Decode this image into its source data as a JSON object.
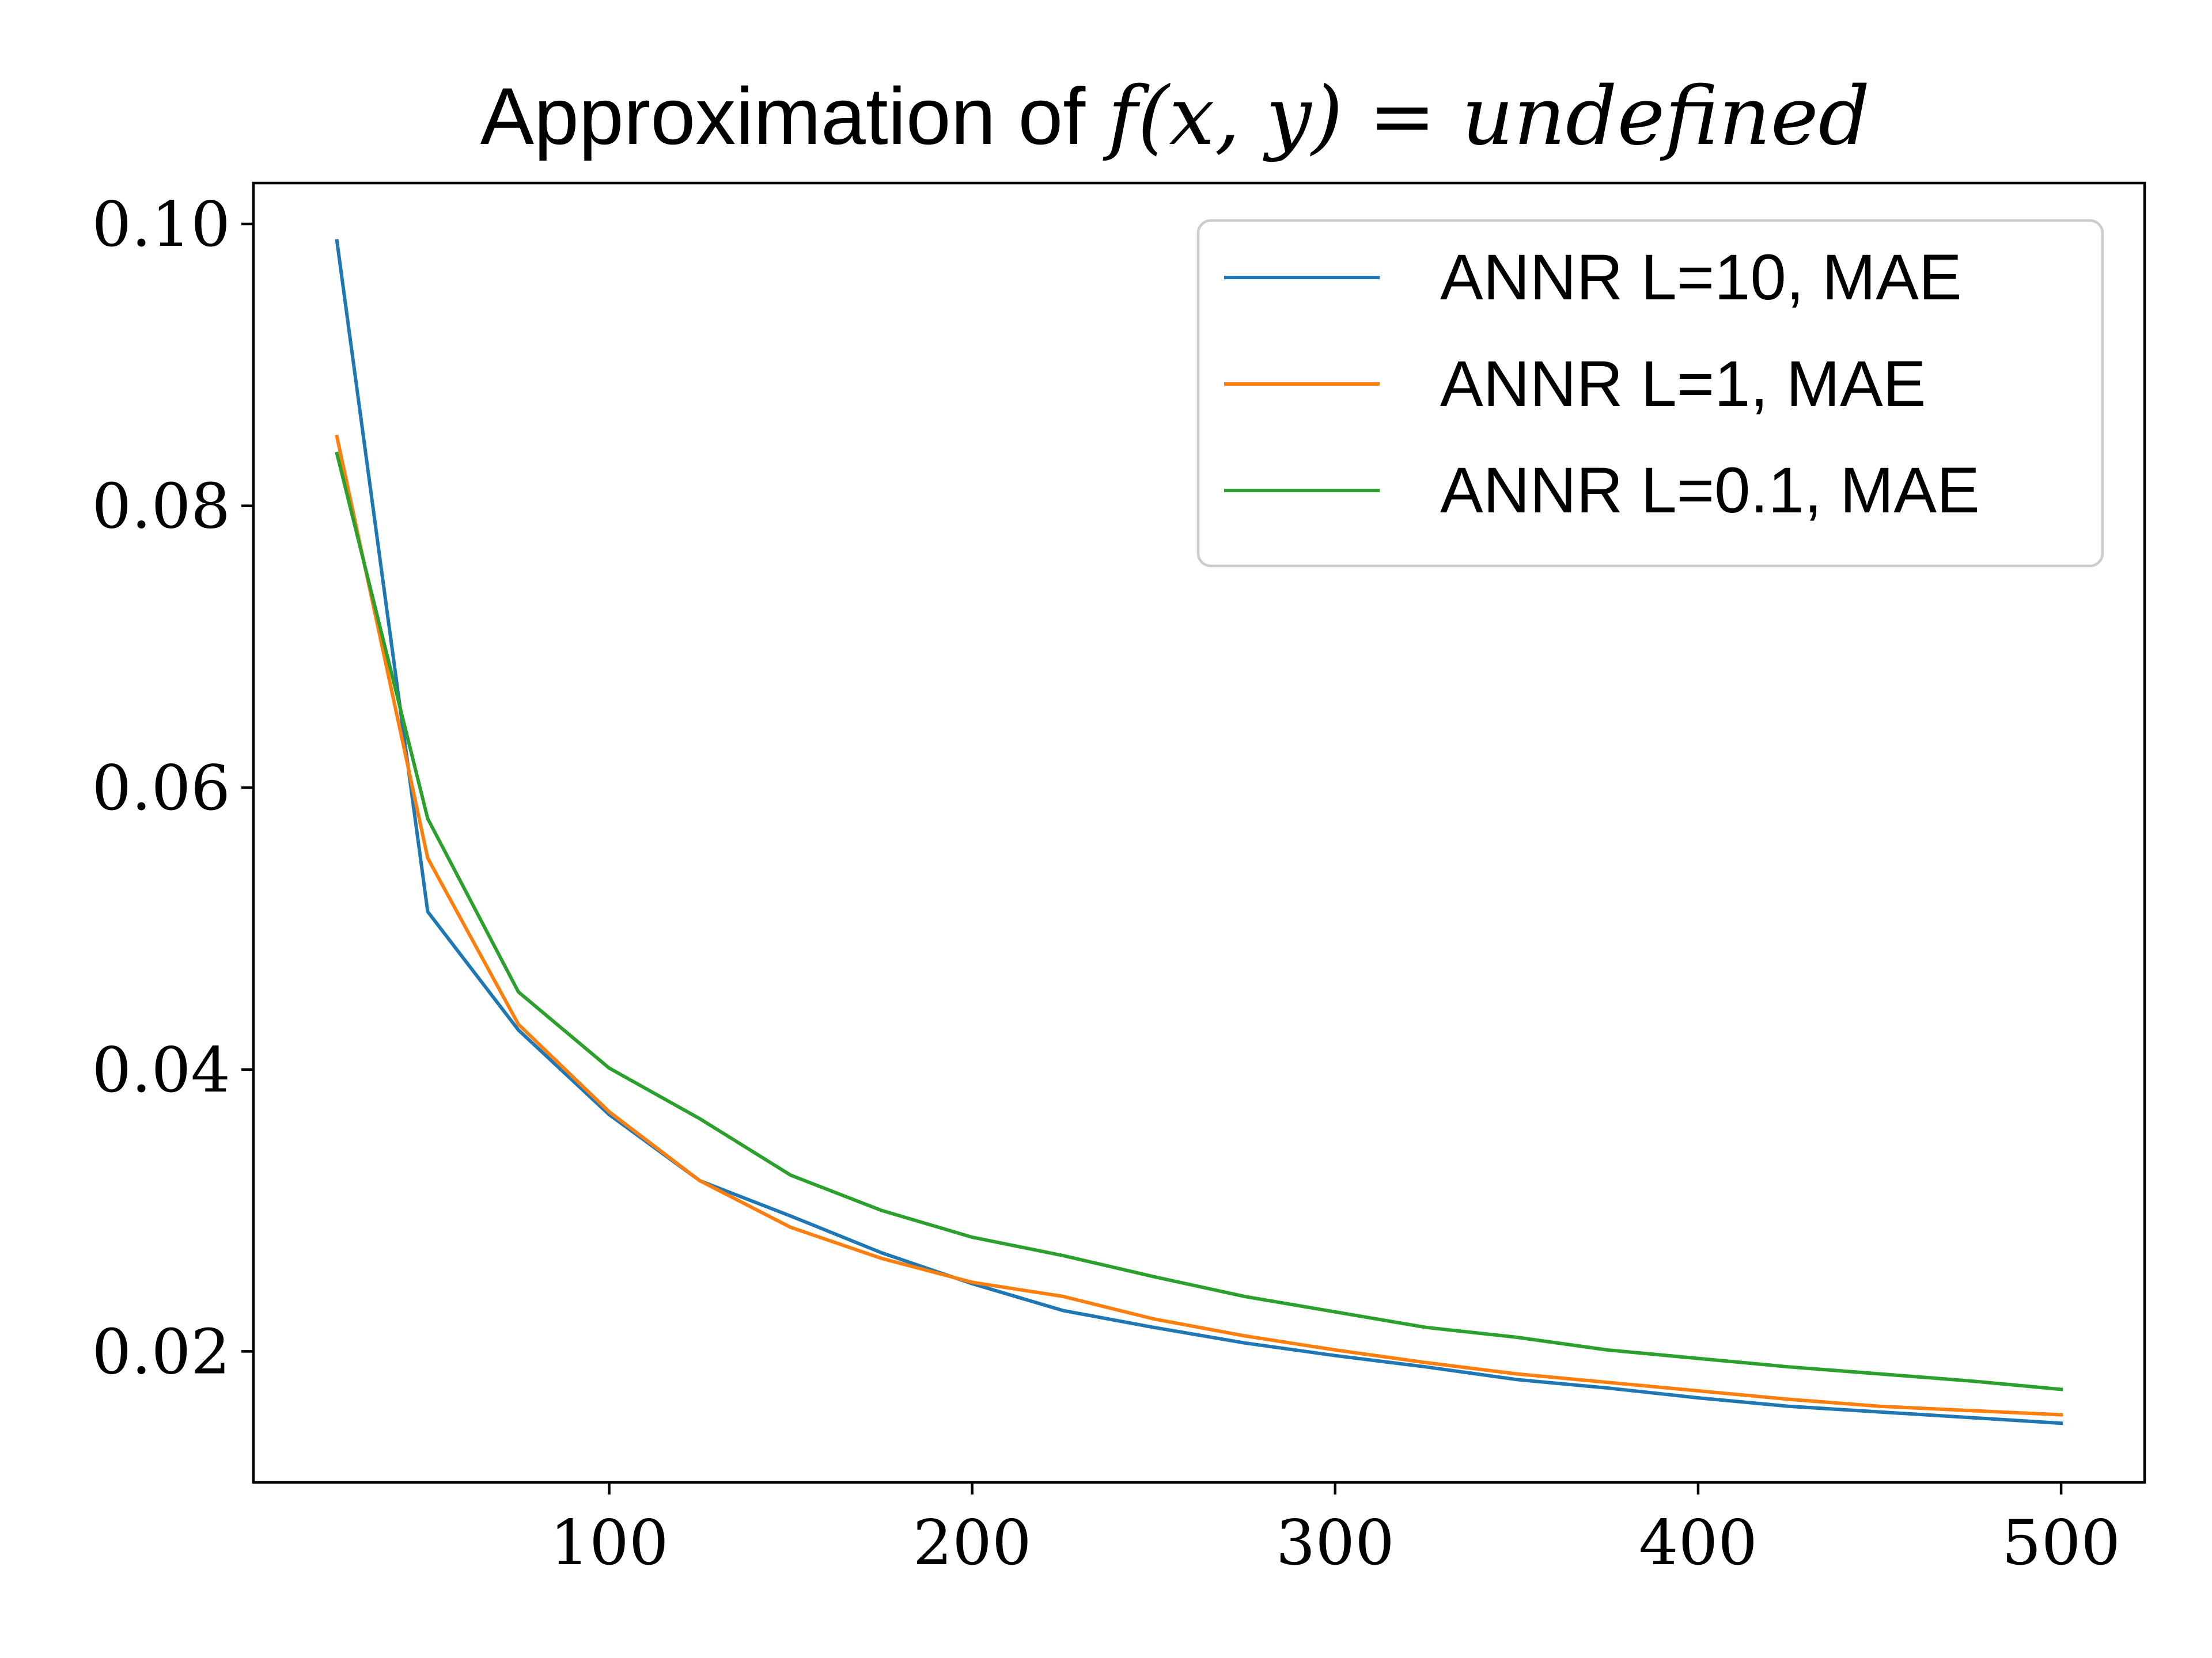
{
  "chart_data": {
    "type": "line",
    "title": {
      "prefix": "Approximation of ",
      "math": "f(x, y) = undefined"
    },
    "xlabel": "",
    "ylabel": "",
    "xlim": [
      2,
      523
    ],
    "ylim": [
      0.0107,
      0.1029
    ],
    "xticks": [
      100,
      200,
      300,
      400,
      500
    ],
    "xtick_labels": [
      "100",
      "200",
      "300",
      "400",
      "500"
    ],
    "yticks": [
      0.02,
      0.04,
      0.06,
      0.08,
      0.1
    ],
    "ytick_labels": [
      "0.02",
      "0.04",
      "0.06",
      "0.08",
      "0.10"
    ],
    "grid": false,
    "legend_position": "top-right",
    "x": [
      25,
      50,
      75,
      100,
      125,
      150,
      175,
      200,
      225,
      250,
      275,
      300,
      325,
      350,
      375,
      400,
      425,
      450,
      475,
      500
    ],
    "series": [
      {
        "name": "ANNR L=10, MAE",
        "color": "#1f77b4",
        "values": [
          0.0988,
          0.0512,
          0.0428,
          0.0368,
          0.0321,
          0.0296,
          0.027,
          0.0248,
          0.0229,
          0.0217,
          0.0206,
          0.0197,
          0.0189,
          0.018,
          0.0174,
          0.0167,
          0.0161,
          0.0157,
          0.0153,
          0.0149
        ]
      },
      {
        "name": "ANNR L=1, MAE",
        "color": "#ff7f0e",
        "values": [
          0.0849,
          0.055,
          0.0432,
          0.037,
          0.0321,
          0.0288,
          0.0266,
          0.0249,
          0.0239,
          0.0223,
          0.0211,
          0.0201,
          0.0192,
          0.0184,
          0.0178,
          0.0172,
          0.0166,
          0.0161,
          0.0158,
          0.0155
        ]
      },
      {
        "name": "ANNR L=0.1, MAE",
        "color": "#2ca02c",
        "values": [
          0.0837,
          0.0578,
          0.0455,
          0.0401,
          0.0365,
          0.0325,
          0.03,
          0.0281,
          0.0268,
          0.0253,
          0.0239,
          0.0228,
          0.0217,
          0.021,
          0.0201,
          0.0195,
          0.0189,
          0.0184,
          0.0179,
          0.0173
        ]
      }
    ]
  }
}
